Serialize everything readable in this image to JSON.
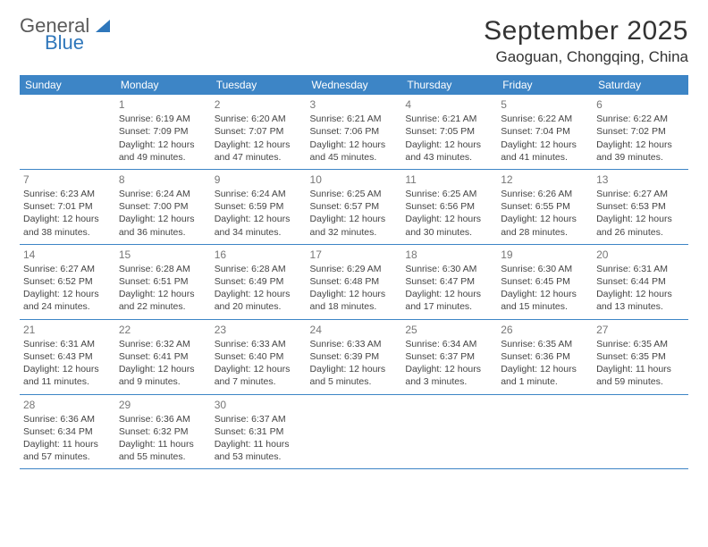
{
  "brand": {
    "word1": "General",
    "word2": "Blue"
  },
  "title": "September 2025",
  "location": "Gaoguan, Chongqing, China",
  "colors": {
    "header_bg": "#3d85c6",
    "header_text": "#ffffff",
    "rule": "#3d85c6",
    "daynum": "#777777",
    "body_text": "#444444",
    "brand_blue": "#2f77bb",
    "brand_grey": "#5a5a5a"
  },
  "day_headers": [
    "Sunday",
    "Monday",
    "Tuesday",
    "Wednesday",
    "Thursday",
    "Friday",
    "Saturday"
  ],
  "weeks": [
    [
      null,
      {
        "n": "1",
        "sr": "Sunrise: 6:19 AM",
        "ss": "Sunset: 7:09 PM",
        "d1": "Daylight: 12 hours",
        "d2": "and 49 minutes."
      },
      {
        "n": "2",
        "sr": "Sunrise: 6:20 AM",
        "ss": "Sunset: 7:07 PM",
        "d1": "Daylight: 12 hours",
        "d2": "and 47 minutes."
      },
      {
        "n": "3",
        "sr": "Sunrise: 6:21 AM",
        "ss": "Sunset: 7:06 PM",
        "d1": "Daylight: 12 hours",
        "d2": "and 45 minutes."
      },
      {
        "n": "4",
        "sr": "Sunrise: 6:21 AM",
        "ss": "Sunset: 7:05 PM",
        "d1": "Daylight: 12 hours",
        "d2": "and 43 minutes."
      },
      {
        "n": "5",
        "sr": "Sunrise: 6:22 AM",
        "ss": "Sunset: 7:04 PM",
        "d1": "Daylight: 12 hours",
        "d2": "and 41 minutes."
      },
      {
        "n": "6",
        "sr": "Sunrise: 6:22 AM",
        "ss": "Sunset: 7:02 PM",
        "d1": "Daylight: 12 hours",
        "d2": "and 39 minutes."
      }
    ],
    [
      {
        "n": "7",
        "sr": "Sunrise: 6:23 AM",
        "ss": "Sunset: 7:01 PM",
        "d1": "Daylight: 12 hours",
        "d2": "and 38 minutes."
      },
      {
        "n": "8",
        "sr": "Sunrise: 6:24 AM",
        "ss": "Sunset: 7:00 PM",
        "d1": "Daylight: 12 hours",
        "d2": "and 36 minutes."
      },
      {
        "n": "9",
        "sr": "Sunrise: 6:24 AM",
        "ss": "Sunset: 6:59 PM",
        "d1": "Daylight: 12 hours",
        "d2": "and 34 minutes."
      },
      {
        "n": "10",
        "sr": "Sunrise: 6:25 AM",
        "ss": "Sunset: 6:57 PM",
        "d1": "Daylight: 12 hours",
        "d2": "and 32 minutes."
      },
      {
        "n": "11",
        "sr": "Sunrise: 6:25 AM",
        "ss": "Sunset: 6:56 PM",
        "d1": "Daylight: 12 hours",
        "d2": "and 30 minutes."
      },
      {
        "n": "12",
        "sr": "Sunrise: 6:26 AM",
        "ss": "Sunset: 6:55 PM",
        "d1": "Daylight: 12 hours",
        "d2": "and 28 minutes."
      },
      {
        "n": "13",
        "sr": "Sunrise: 6:27 AM",
        "ss": "Sunset: 6:53 PM",
        "d1": "Daylight: 12 hours",
        "d2": "and 26 minutes."
      }
    ],
    [
      {
        "n": "14",
        "sr": "Sunrise: 6:27 AM",
        "ss": "Sunset: 6:52 PM",
        "d1": "Daylight: 12 hours",
        "d2": "and 24 minutes."
      },
      {
        "n": "15",
        "sr": "Sunrise: 6:28 AM",
        "ss": "Sunset: 6:51 PM",
        "d1": "Daylight: 12 hours",
        "d2": "and 22 minutes."
      },
      {
        "n": "16",
        "sr": "Sunrise: 6:28 AM",
        "ss": "Sunset: 6:49 PM",
        "d1": "Daylight: 12 hours",
        "d2": "and 20 minutes."
      },
      {
        "n": "17",
        "sr": "Sunrise: 6:29 AM",
        "ss": "Sunset: 6:48 PM",
        "d1": "Daylight: 12 hours",
        "d2": "and 18 minutes."
      },
      {
        "n": "18",
        "sr": "Sunrise: 6:30 AM",
        "ss": "Sunset: 6:47 PM",
        "d1": "Daylight: 12 hours",
        "d2": "and 17 minutes."
      },
      {
        "n": "19",
        "sr": "Sunrise: 6:30 AM",
        "ss": "Sunset: 6:45 PM",
        "d1": "Daylight: 12 hours",
        "d2": "and 15 minutes."
      },
      {
        "n": "20",
        "sr": "Sunrise: 6:31 AM",
        "ss": "Sunset: 6:44 PM",
        "d1": "Daylight: 12 hours",
        "d2": "and 13 minutes."
      }
    ],
    [
      {
        "n": "21",
        "sr": "Sunrise: 6:31 AM",
        "ss": "Sunset: 6:43 PM",
        "d1": "Daylight: 12 hours",
        "d2": "and 11 minutes."
      },
      {
        "n": "22",
        "sr": "Sunrise: 6:32 AM",
        "ss": "Sunset: 6:41 PM",
        "d1": "Daylight: 12 hours",
        "d2": "and 9 minutes."
      },
      {
        "n": "23",
        "sr": "Sunrise: 6:33 AM",
        "ss": "Sunset: 6:40 PM",
        "d1": "Daylight: 12 hours",
        "d2": "and 7 minutes."
      },
      {
        "n": "24",
        "sr": "Sunrise: 6:33 AM",
        "ss": "Sunset: 6:39 PM",
        "d1": "Daylight: 12 hours",
        "d2": "and 5 minutes."
      },
      {
        "n": "25",
        "sr": "Sunrise: 6:34 AM",
        "ss": "Sunset: 6:37 PM",
        "d1": "Daylight: 12 hours",
        "d2": "and 3 minutes."
      },
      {
        "n": "26",
        "sr": "Sunrise: 6:35 AM",
        "ss": "Sunset: 6:36 PM",
        "d1": "Daylight: 12 hours",
        "d2": "and 1 minute."
      },
      {
        "n": "27",
        "sr": "Sunrise: 6:35 AM",
        "ss": "Sunset: 6:35 PM",
        "d1": "Daylight: 11 hours",
        "d2": "and 59 minutes."
      }
    ],
    [
      {
        "n": "28",
        "sr": "Sunrise: 6:36 AM",
        "ss": "Sunset: 6:34 PM",
        "d1": "Daylight: 11 hours",
        "d2": "and 57 minutes."
      },
      {
        "n": "29",
        "sr": "Sunrise: 6:36 AM",
        "ss": "Sunset: 6:32 PM",
        "d1": "Daylight: 11 hours",
        "d2": "and 55 minutes."
      },
      {
        "n": "30",
        "sr": "Sunrise: 6:37 AM",
        "ss": "Sunset: 6:31 PM",
        "d1": "Daylight: 11 hours",
        "d2": "and 53 minutes."
      },
      null,
      null,
      null,
      null
    ]
  ]
}
